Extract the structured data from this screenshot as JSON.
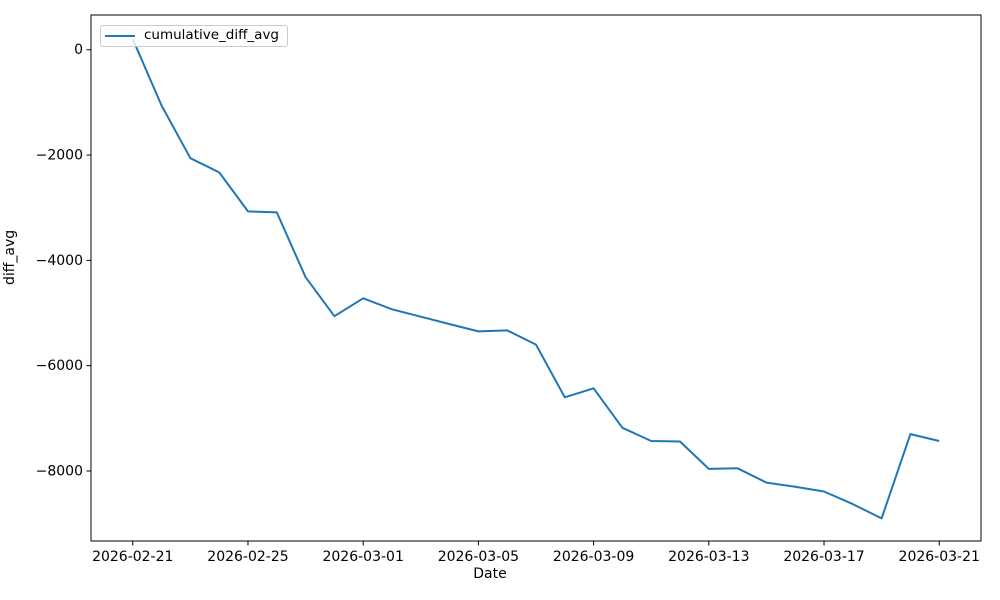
{
  "figure": {
    "background": "#ffffff"
  },
  "chart_data": {
    "type": "line",
    "xlabel": "Date",
    "ylabel": "diff_avg",
    "grid": false,
    "legend": {
      "position": "upper left",
      "entries": [
        "cumulative_diff_avg"
      ]
    },
    "x": [
      "2026-02-21",
      "2026-02-22",
      "2026-02-23",
      "2026-02-24",
      "2026-02-25",
      "2026-02-26",
      "2026-02-27",
      "2026-02-28",
      "2026-03-01",
      "2026-03-02",
      "2026-03-03",
      "2026-03-04",
      "2026-03-05",
      "2026-03-06",
      "2026-03-07",
      "2026-03-08",
      "2026-03-09",
      "2026-03-10",
      "2026-03-11",
      "2026-03-12",
      "2026-03-13",
      "2026-03-14",
      "2026-03-15",
      "2026-03-16",
      "2026-03-17",
      "2026-03-18",
      "2026-03-19",
      "2026-03-20",
      "2026-03-21"
    ],
    "series": [
      {
        "name": "cumulative_diff_avg",
        "color": "#1f77b4",
        "values": [
          200,
          -1060,
          -2060,
          -2330,
          -3070,
          -3090,
          -4320,
          -5060,
          -4720,
          -4930,
          -5070,
          -5210,
          -5350,
          -5330,
          -5600,
          -6600,
          -6430,
          -7180,
          -7430,
          -7440,
          -7960,
          -7950,
          -8220,
          -8300,
          -8390,
          -8630,
          -8900,
          -7300,
          -7430
        ]
      }
    ],
    "x_tick_indices": [
      0,
      4,
      8,
      12,
      16,
      20,
      24,
      28
    ],
    "x_tick_labels": [
      "2026-02-21",
      "2026-02-25",
      "2026-03-01",
      "2026-03-05",
      "2026-03-09",
      "2026-03-13",
      "2026-03-17",
      "2026-03-21"
    ],
    "y_ticks": [
      0,
      -2000,
      -4000,
      -6000,
      -8000
    ],
    "ylim": [
      -9330,
      660
    ],
    "xlim_days": [
      -1.45,
      29.45
    ]
  }
}
